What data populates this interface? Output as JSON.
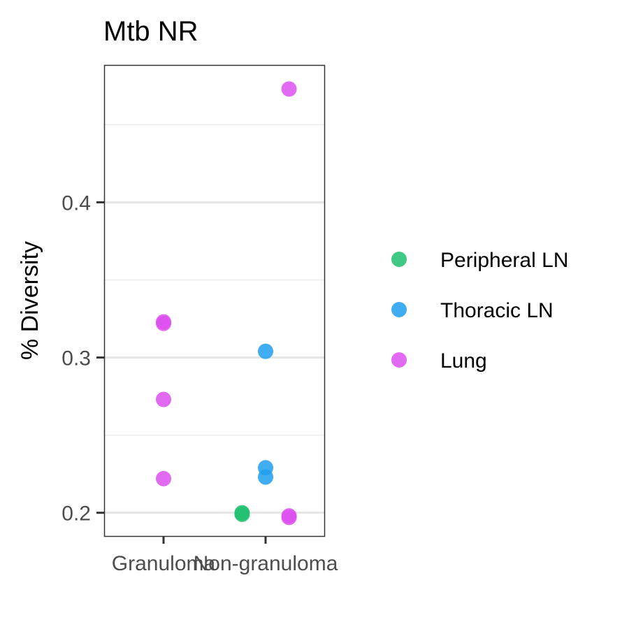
{
  "chart_data": {
    "type": "scatter",
    "title": "Mtb NR",
    "xlabel": "",
    "ylabel": "% Diversity",
    "categories": [
      "Granuloma",
      "Non-granuloma"
    ],
    "ylim": [
      0.185,
      0.488
    ],
    "y_ticks": [
      {
        "value": 0.2,
        "label": "0.2"
      },
      {
        "value": 0.3,
        "label": "0.3"
      },
      {
        "value": 0.4,
        "label": "0.4"
      }
    ],
    "y_minor_grid": [
      0.25,
      0.35,
      0.45
    ],
    "grid": true,
    "legend_position": "right",
    "series": [
      {
        "name": "Peripheral LN",
        "color": "#1fbf6e",
        "points": [
          {
            "category": "Non-granuloma",
            "jitter": -0.23,
            "y": 0.2
          },
          {
            "category": "Non-granuloma",
            "jitter": -0.23,
            "y": 0.199
          }
        ]
      },
      {
        "name": "Thoracic LN",
        "color": "#1f9ff0",
        "points": [
          {
            "category": "Non-granuloma",
            "jitter": 0.0,
            "y": 0.304
          },
          {
            "category": "Non-granuloma",
            "jitter": 0.0,
            "y": 0.229
          },
          {
            "category": "Non-granuloma",
            "jitter": 0.0,
            "y": 0.223
          }
        ]
      },
      {
        "name": "Lung",
        "color": "#dd4ff0",
        "points": [
          {
            "category": "Granuloma",
            "jitter": 0.0,
            "y": 0.323
          },
          {
            "category": "Granuloma",
            "jitter": 0.0,
            "y": 0.322
          },
          {
            "category": "Granuloma",
            "jitter": 0.0,
            "y": 0.273
          },
          {
            "category": "Granuloma",
            "jitter": 0.0,
            "y": 0.222
          },
          {
            "category": "Non-granuloma",
            "jitter": 0.23,
            "y": 0.473
          },
          {
            "category": "Non-granuloma",
            "jitter": 0.23,
            "y": 0.198
          },
          {
            "category": "Non-granuloma",
            "jitter": 0.23,
            "y": 0.197
          }
        ]
      }
    ]
  }
}
